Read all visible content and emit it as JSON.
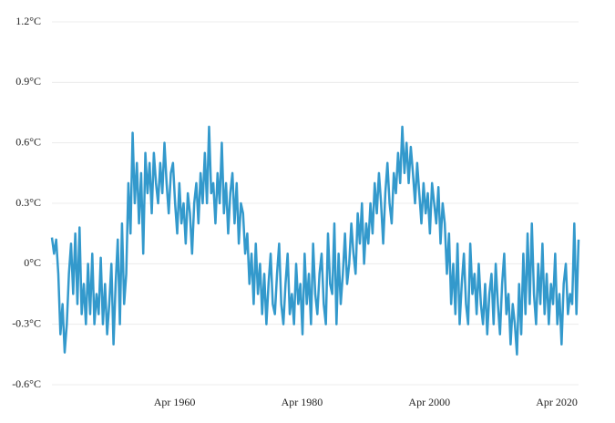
{
  "chart_data": {
    "type": "line",
    "x": [
      "1941-01",
      "1941-05",
      "1941-09",
      "1942-01",
      "1942-05",
      "1942-09",
      "1943-01",
      "1943-05",
      "1943-09",
      "1944-01",
      "1944-05",
      "1944-09",
      "1945-01",
      "1945-05",
      "1945-09",
      "1946-01",
      "1946-05",
      "1946-09",
      "1947-01",
      "1947-05",
      "1947-09",
      "1948-01",
      "1948-05",
      "1948-09",
      "1949-01",
      "1949-05",
      "1949-09",
      "1950-01",
      "1950-05",
      "1950-09",
      "1951-01",
      "1951-05",
      "1951-09",
      "1952-01",
      "1952-05",
      "1952-09",
      "1953-01",
      "1953-05",
      "1953-09",
      "1954-01",
      "1954-05",
      "1954-09",
      "1955-01",
      "1955-05",
      "1955-09",
      "1956-01",
      "1956-05",
      "1956-09",
      "1957-01",
      "1957-05",
      "1957-09",
      "1958-01",
      "1958-05",
      "1958-09",
      "1959-01",
      "1959-05",
      "1959-09",
      "1960-01",
      "1960-05",
      "1960-09",
      "1961-01",
      "1961-05",
      "1961-09",
      "1962-01",
      "1962-05",
      "1962-09",
      "1963-01",
      "1963-05",
      "1963-09",
      "1964-01",
      "1964-05",
      "1964-09",
      "1965-01",
      "1965-05",
      "1965-09",
      "1966-01",
      "1966-05",
      "1966-09",
      "1967-01",
      "1967-05",
      "1967-09",
      "1968-01",
      "1968-05",
      "1968-09",
      "1969-01",
      "1969-05",
      "1969-09",
      "1970-01",
      "1970-05",
      "1970-09",
      "1971-01",
      "1971-05",
      "1971-09",
      "1972-01",
      "1972-05",
      "1972-09",
      "1973-01",
      "1973-05",
      "1973-09",
      "1974-01",
      "1974-05",
      "1974-09",
      "1975-01",
      "1975-05",
      "1975-09",
      "1976-01",
      "1976-05",
      "1976-09",
      "1977-01",
      "1977-05",
      "1977-09",
      "1978-01",
      "1978-05",
      "1978-09",
      "1979-01",
      "1979-05",
      "1979-09",
      "1980-01",
      "1980-05",
      "1980-09",
      "1981-01",
      "1981-05",
      "1981-09",
      "1982-01",
      "1982-05",
      "1982-09",
      "1983-01",
      "1983-05",
      "1983-09",
      "1984-01",
      "1984-05",
      "1984-09",
      "1985-01",
      "1985-05",
      "1985-09",
      "1986-01",
      "1986-05",
      "1986-09",
      "1987-01",
      "1987-05",
      "1987-09",
      "1988-01",
      "1988-05",
      "1988-09",
      "1989-01",
      "1989-05",
      "1989-09",
      "1990-01",
      "1990-05",
      "1990-09",
      "1991-01",
      "1991-05",
      "1991-09",
      "1992-01",
      "1992-05",
      "1992-09",
      "1993-01",
      "1993-05",
      "1993-09",
      "1994-01",
      "1994-05",
      "1994-09",
      "1995-01",
      "1995-05",
      "1995-09",
      "1996-01",
      "1996-05",
      "1996-09",
      "1997-01",
      "1997-05",
      "1997-09",
      "1998-01",
      "1998-05",
      "1998-09",
      "1999-01",
      "1999-05",
      "1999-09",
      "2000-01",
      "2000-05",
      "2000-09",
      "2001-01",
      "2001-05",
      "2001-09",
      "2002-01",
      "2002-05",
      "2002-09",
      "2003-01",
      "2003-05",
      "2003-09",
      "2004-01",
      "2004-05",
      "2004-09",
      "2005-01",
      "2005-05",
      "2005-09",
      "2006-01",
      "2006-05",
      "2006-09",
      "2007-01",
      "2007-05",
      "2007-09",
      "2008-01",
      "2008-05",
      "2008-09",
      "2009-01",
      "2009-05",
      "2009-09",
      "2010-01",
      "2010-05",
      "2010-09",
      "2011-01",
      "2011-05",
      "2011-09",
      "2012-01",
      "2012-05",
      "2012-09",
      "2013-01",
      "2013-05",
      "2013-09",
      "2014-01",
      "2014-05",
      "2014-09",
      "2015-01",
      "2015-05",
      "2015-09",
      "2016-01",
      "2016-05",
      "2016-09",
      "2017-01",
      "2017-05",
      "2017-09",
      "2018-01",
      "2018-05",
      "2018-09",
      "2019-01",
      "2019-05",
      "2019-09",
      "2020-01",
      "2020-05",
      "2020-09",
      "2021-01",
      "2021-05",
      "2021-09",
      "2022-01",
      "2022-05",
      "2022-09",
      "2023-01",
      "2023-05",
      "2023-09"
    ],
    "series": [
      {
        "color": "#3399cc",
        "values": [
          0.13,
          0.05,
          0.12,
          -0.05,
          -0.35,
          -0.2,
          -0.44,
          -0.3,
          -0.05,
          0.1,
          -0.15,
          0.15,
          -0.2,
          0.18,
          -0.25,
          -0.1,
          -0.3,
          0.0,
          -0.25,
          0.05,
          -0.3,
          -0.15,
          -0.25,
          0.03,
          -0.3,
          -0.1,
          -0.35,
          -0.2,
          0.0,
          -0.4,
          -0.1,
          0.12,
          -0.3,
          0.2,
          -0.2,
          -0.05,
          0.4,
          0.15,
          0.65,
          0.3,
          0.5,
          0.2,
          0.45,
          0.05,
          0.55,
          0.35,
          0.5,
          0.25,
          0.55,
          0.4,
          0.3,
          0.5,
          0.35,
          0.6,
          0.4,
          0.25,
          0.45,
          0.5,
          0.3,
          0.15,
          0.4,
          0.2,
          0.3,
          0.1,
          0.35,
          0.25,
          0.05,
          0.3,
          0.4,
          0.2,
          0.45,
          0.3,
          0.55,
          0.3,
          0.68,
          0.35,
          0.4,
          0.2,
          0.45,
          0.3,
          0.6,
          0.25,
          0.4,
          0.15,
          0.35,
          0.45,
          0.2,
          0.4,
          0.1,
          0.3,
          0.25,
          0.05,
          0.15,
          -0.1,
          0.05,
          -0.2,
          0.1,
          -0.15,
          0.0,
          -0.25,
          -0.05,
          -0.3,
          -0.1,
          0.05,
          -0.2,
          -0.25,
          -0.05,
          0.1,
          -0.2,
          -0.3,
          -0.1,
          0.05,
          -0.25,
          -0.15,
          -0.3,
          0.0,
          -0.2,
          -0.1,
          -0.35,
          0.05,
          -0.2,
          -0.05,
          -0.3,
          0.1,
          -0.15,
          -0.25,
          -0.05,
          0.05,
          -0.2,
          -0.3,
          0.15,
          -0.1,
          -0.15,
          0.2,
          -0.3,
          0.05,
          -0.2,
          -0.05,
          0.15,
          -0.1,
          0.0,
          0.2,
          0.05,
          -0.05,
          0.25,
          0.1,
          0.3,
          0.0,
          0.2,
          0.1,
          0.3,
          0.15,
          0.4,
          0.25,
          0.45,
          0.3,
          0.1,
          0.35,
          0.5,
          0.3,
          0.2,
          0.45,
          0.35,
          0.55,
          0.4,
          0.68,
          0.45,
          0.6,
          0.4,
          0.58,
          0.45,
          0.3,
          0.5,
          0.35,
          0.2,
          0.4,
          0.25,
          0.35,
          0.15,
          0.4,
          0.3,
          0.2,
          0.38,
          0.1,
          0.3,
          0.2,
          -0.05,
          0.15,
          -0.2,
          0.0,
          -0.25,
          0.1,
          -0.3,
          -0.1,
          0.05,
          -0.2,
          -0.3,
          0.1,
          -0.15,
          -0.05,
          -0.25,
          0.0,
          -0.2,
          -0.3,
          -0.1,
          -0.35,
          -0.15,
          -0.05,
          -0.3,
          0.0,
          -0.2,
          -0.35,
          -0.1,
          0.05,
          -0.25,
          -0.15,
          -0.4,
          -0.2,
          -0.3,
          -0.45,
          -0.1,
          -0.35,
          0.05,
          -0.25,
          0.15,
          -0.2,
          0.2,
          -0.15,
          -0.3,
          0.0,
          -0.2,
          0.1,
          -0.25,
          -0.05,
          -0.3,
          -0.1,
          -0.2,
          0.05,
          -0.3,
          -0.15,
          -0.4,
          -0.1,
          0.0,
          -0.25,
          -0.15,
          -0.2,
          0.2,
          -0.25,
          0.12
        ]
      }
    ],
    "xlim": [
      "1941-01",
      "2023-09"
    ],
    "xticks": [
      {
        "value": "1960-04",
        "label": "Apr 1960"
      },
      {
        "value": "1980-04",
        "label": "Apr 1980"
      },
      {
        "value": "2000-04",
        "label": "Apr 2000"
      },
      {
        "value": "2020-04",
        "label": "Apr 2020"
      }
    ],
    "ylim": [
      -0.6,
      1.2
    ],
    "yticks": [
      {
        "value": -0.6,
        "label": "-0.6°C"
      },
      {
        "value": -0.3,
        "label": "-0.3°C"
      },
      {
        "value": 0,
        "label": "0°C"
      },
      {
        "value": 0.3,
        "label": "0.3°C"
      },
      {
        "value": 0.6,
        "label": "0.6°C"
      },
      {
        "value": 0.9,
        "label": "0.9°C"
      },
      {
        "value": 1.2,
        "label": "1.2°C"
      }
    ],
    "grid": true
  }
}
